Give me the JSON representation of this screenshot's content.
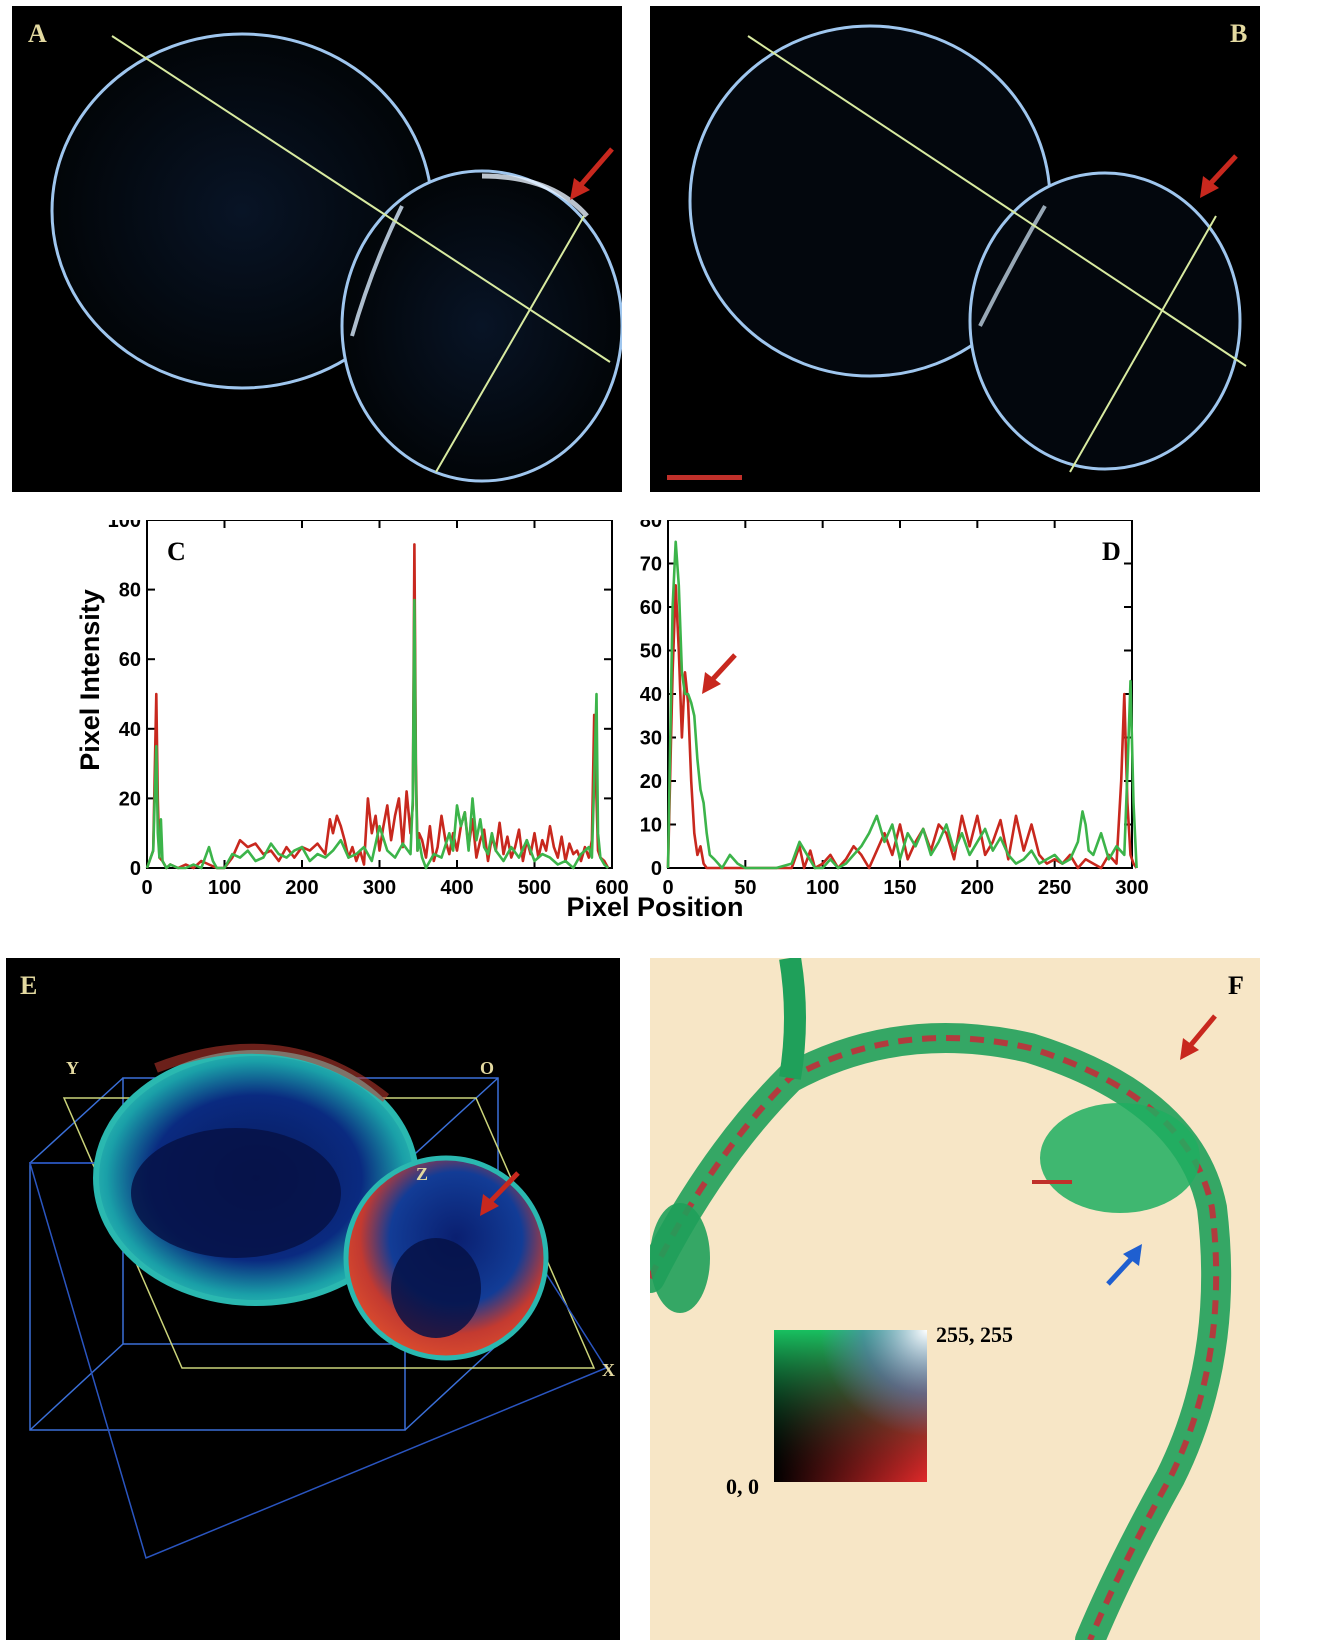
{
  "panels": {
    "a": {
      "letter": "A"
    },
    "b": {
      "letter": "B"
    },
    "e": {
      "letter": "E",
      "axis_labels": [
        "Y",
        "O",
        "Z",
        "X"
      ]
    },
    "f": {
      "letter": "F",
      "colormap_max": "255, 255",
      "colormap_min": "0, 0"
    }
  },
  "colors": {
    "red_series": "#c8281e",
    "green_series": "#3cb44a",
    "guide_line": "#d8eaa0",
    "arrow_red": "#c8281e",
    "arrow_blue": "#1f5fd0",
    "scale_bar": "#c0302a",
    "cell_outline": "#9fc6ee",
    "panel_f_background": "#f7e6c6",
    "panel_label": "#e3d9a0"
  },
  "chart_data": [
    {
      "type": "line",
      "panel": "C",
      "ylabel": "Pixel Intensity",
      "xlabel": "Pixel Position",
      "xlim": [
        0,
        600
      ],
      "ylim": [
        0,
        100
      ],
      "xticks": [
        0,
        100,
        200,
        300,
        400,
        500,
        600
      ],
      "yticks": [
        0,
        20,
        40,
        60,
        80,
        100
      ],
      "grid": false,
      "annotation": "C",
      "series": [
        {
          "color": "red",
          "x": [
            0,
            8,
            12,
            14,
            16,
            20,
            25,
            30,
            40,
            50,
            60,
            70,
            80,
            90,
            100,
            110,
            120,
            130,
            140,
            150,
            160,
            170,
            180,
            190,
            200,
            210,
            220,
            230,
            236,
            240,
            245,
            250,
            255,
            260,
            265,
            270,
            275,
            280,
            285,
            290,
            295,
            300,
            305,
            310,
            315,
            320,
            325,
            330,
            335,
            340,
            343,
            345,
            347,
            349,
            351,
            355,
            360,
            365,
            370,
            375,
            380,
            385,
            390,
            395,
            400,
            405,
            410,
            415,
            420,
            425,
            430,
            435,
            440,
            445,
            450,
            455,
            460,
            465,
            470,
            475,
            480,
            485,
            490,
            495,
            500,
            505,
            510,
            515,
            520,
            525,
            530,
            535,
            540,
            545,
            550,
            555,
            560,
            565,
            570,
            574,
            577,
            580,
            582,
            585,
            590,
            595
          ],
          "y": [
            0,
            5,
            50,
            20,
            3,
            2,
            0,
            1,
            0,
            1,
            0,
            2,
            1,
            0,
            0,
            3,
            8,
            6,
            7,
            4,
            5,
            2,
            6,
            3,
            6,
            5,
            7,
            4,
            14,
            10,
            15,
            12,
            8,
            3,
            6,
            2,
            5,
            1,
            20,
            10,
            15,
            5,
            12,
            18,
            8,
            15,
            20,
            6,
            22,
            10,
            18,
            93,
            30,
            5,
            10,
            8,
            3,
            12,
            2,
            6,
            15,
            8,
            4,
            10,
            5,
            12,
            16,
            6,
            14,
            3,
            8,
            11,
            2,
            9,
            5,
            13,
            4,
            9,
            3,
            6,
            11,
            2,
            8,
            4,
            10,
            3,
            8,
            5,
            12,
            6,
            3,
            9,
            2,
            7,
            4,
            5,
            2,
            6,
            3,
            8,
            44,
            20,
            5,
            3,
            2,
            0
          ]
        },
        {
          "color": "green",
          "x": [
            0,
            8,
            12,
            14,
            16,
            18,
            20,
            25,
            30,
            40,
            50,
            60,
            70,
            80,
            85,
            90,
            100,
            110,
            120,
            130,
            140,
            150,
            160,
            170,
            180,
            190,
            200,
            210,
            220,
            230,
            240,
            250,
            260,
            270,
            280,
            290,
            300,
            310,
            320,
            330,
            340,
            343,
            345,
            347,
            349,
            351,
            355,
            360,
            370,
            380,
            390,
            395,
            400,
            405,
            410,
            415,
            420,
            425,
            430,
            435,
            440,
            445,
            450,
            460,
            470,
            480,
            490,
            500,
            510,
            520,
            530,
            540,
            550,
            560,
            570,
            574,
            577,
            580,
            582,
            585,
            590,
            595
          ],
          "y": [
            0,
            5,
            35,
            10,
            3,
            14,
            2,
            0,
            1,
            0,
            0,
            1,
            0,
            6,
            2,
            0,
            0,
            4,
            3,
            5,
            2,
            3,
            7,
            4,
            3,
            5,
            6,
            2,
            4,
            3,
            5,
            8,
            3,
            4,
            6,
            2,
            12,
            5,
            3,
            7,
            4,
            20,
            77,
            25,
            5,
            8,
            3,
            0,
            4,
            3,
            10,
            5,
            18,
            12,
            16,
            5,
            20,
            8,
            14,
            6,
            4,
            10,
            5,
            2,
            6,
            3,
            8,
            2,
            4,
            3,
            1,
            2,
            0,
            4,
            6,
            3,
            25,
            50,
            10,
            3,
            1,
            0
          ]
        }
      ]
    },
    {
      "type": "line",
      "panel": "D",
      "xlabel": "Pixel Position",
      "xlim": [
        0,
        300
      ],
      "ylim": [
        0,
        80
      ],
      "xticks": [
        0,
        50,
        100,
        150,
        200,
        250,
        300
      ],
      "yticks": [
        0,
        10,
        20,
        30,
        40,
        50,
        60,
        70,
        80
      ],
      "grid": false,
      "annotation": "D",
      "series": [
        {
          "color": "red",
          "x": [
            0,
            3,
            5,
            7,
            9,
            11,
            13,
            15,
            17,
            19,
            21,
            23,
            25,
            28,
            30,
            35,
            40,
            50,
            60,
            70,
            80,
            85,
            88,
            92,
            95,
            100,
            105,
            110,
            115,
            120,
            125,
            130,
            135,
            140,
            145,
            150,
            155,
            160,
            165,
            170,
            175,
            180,
            185,
            190,
            195,
            200,
            205,
            210,
            215,
            220,
            225,
            230,
            235,
            240,
            245,
            250,
            255,
            260,
            265,
            270,
            275,
            280,
            285,
            290,
            293,
            295,
            297,
            299,
            301,
            303
          ],
          "y": [
            0,
            45,
            65,
            50,
            30,
            45,
            38,
            20,
            8,
            3,
            5,
            1,
            0,
            0,
            0,
            0,
            0,
            0,
            0,
            0,
            0,
            5,
            0,
            4,
            0,
            1,
            3,
            0,
            2,
            5,
            3,
            0,
            4,
            8,
            3,
            10,
            2,
            6,
            9,
            4,
            10,
            8,
            2,
            12,
            5,
            12,
            3,
            6,
            11,
            2,
            12,
            4,
            10,
            3,
            1,
            2,
            1,
            3,
            0,
            2,
            1,
            0,
            3,
            1,
            20,
            40,
            15,
            3,
            1,
            0
          ]
        },
        {
          "color": "green",
          "x": [
            0,
            3,
            5,
            7,
            9,
            11,
            13,
            15,
            17,
            19,
            21,
            23,
            25,
            27,
            30,
            35,
            40,
            45,
            50,
            60,
            70,
            80,
            85,
            90,
            95,
            100,
            105,
            110,
            115,
            120,
            125,
            130,
            135,
            140,
            145,
            150,
            155,
            160,
            165,
            170,
            175,
            180,
            185,
            190,
            195,
            200,
            205,
            210,
            215,
            220,
            225,
            230,
            235,
            240,
            245,
            250,
            255,
            260,
            265,
            268,
            270,
            272,
            275,
            280,
            285,
            290,
            295,
            297,
            299,
            301,
            303
          ],
          "y": [
            0,
            60,
            75,
            65,
            45,
            40,
            40,
            38,
            35,
            25,
            18,
            15,
            8,
            3,
            2,
            0,
            3,
            1,
            0,
            0,
            0,
            1,
            6,
            3,
            0,
            0,
            2,
            0,
            1,
            3,
            5,
            8,
            12,
            6,
            10,
            2,
            8,
            5,
            9,
            3,
            6,
            10,
            4,
            8,
            3,
            6,
            9,
            4,
            7,
            3,
            1,
            2,
            4,
            1,
            2,
            3,
            1,
            2,
            6,
            13,
            10,
            4,
            3,
            8,
            2,
            5,
            3,
            22,
            43,
            15,
            0
          ]
        }
      ]
    }
  ]
}
